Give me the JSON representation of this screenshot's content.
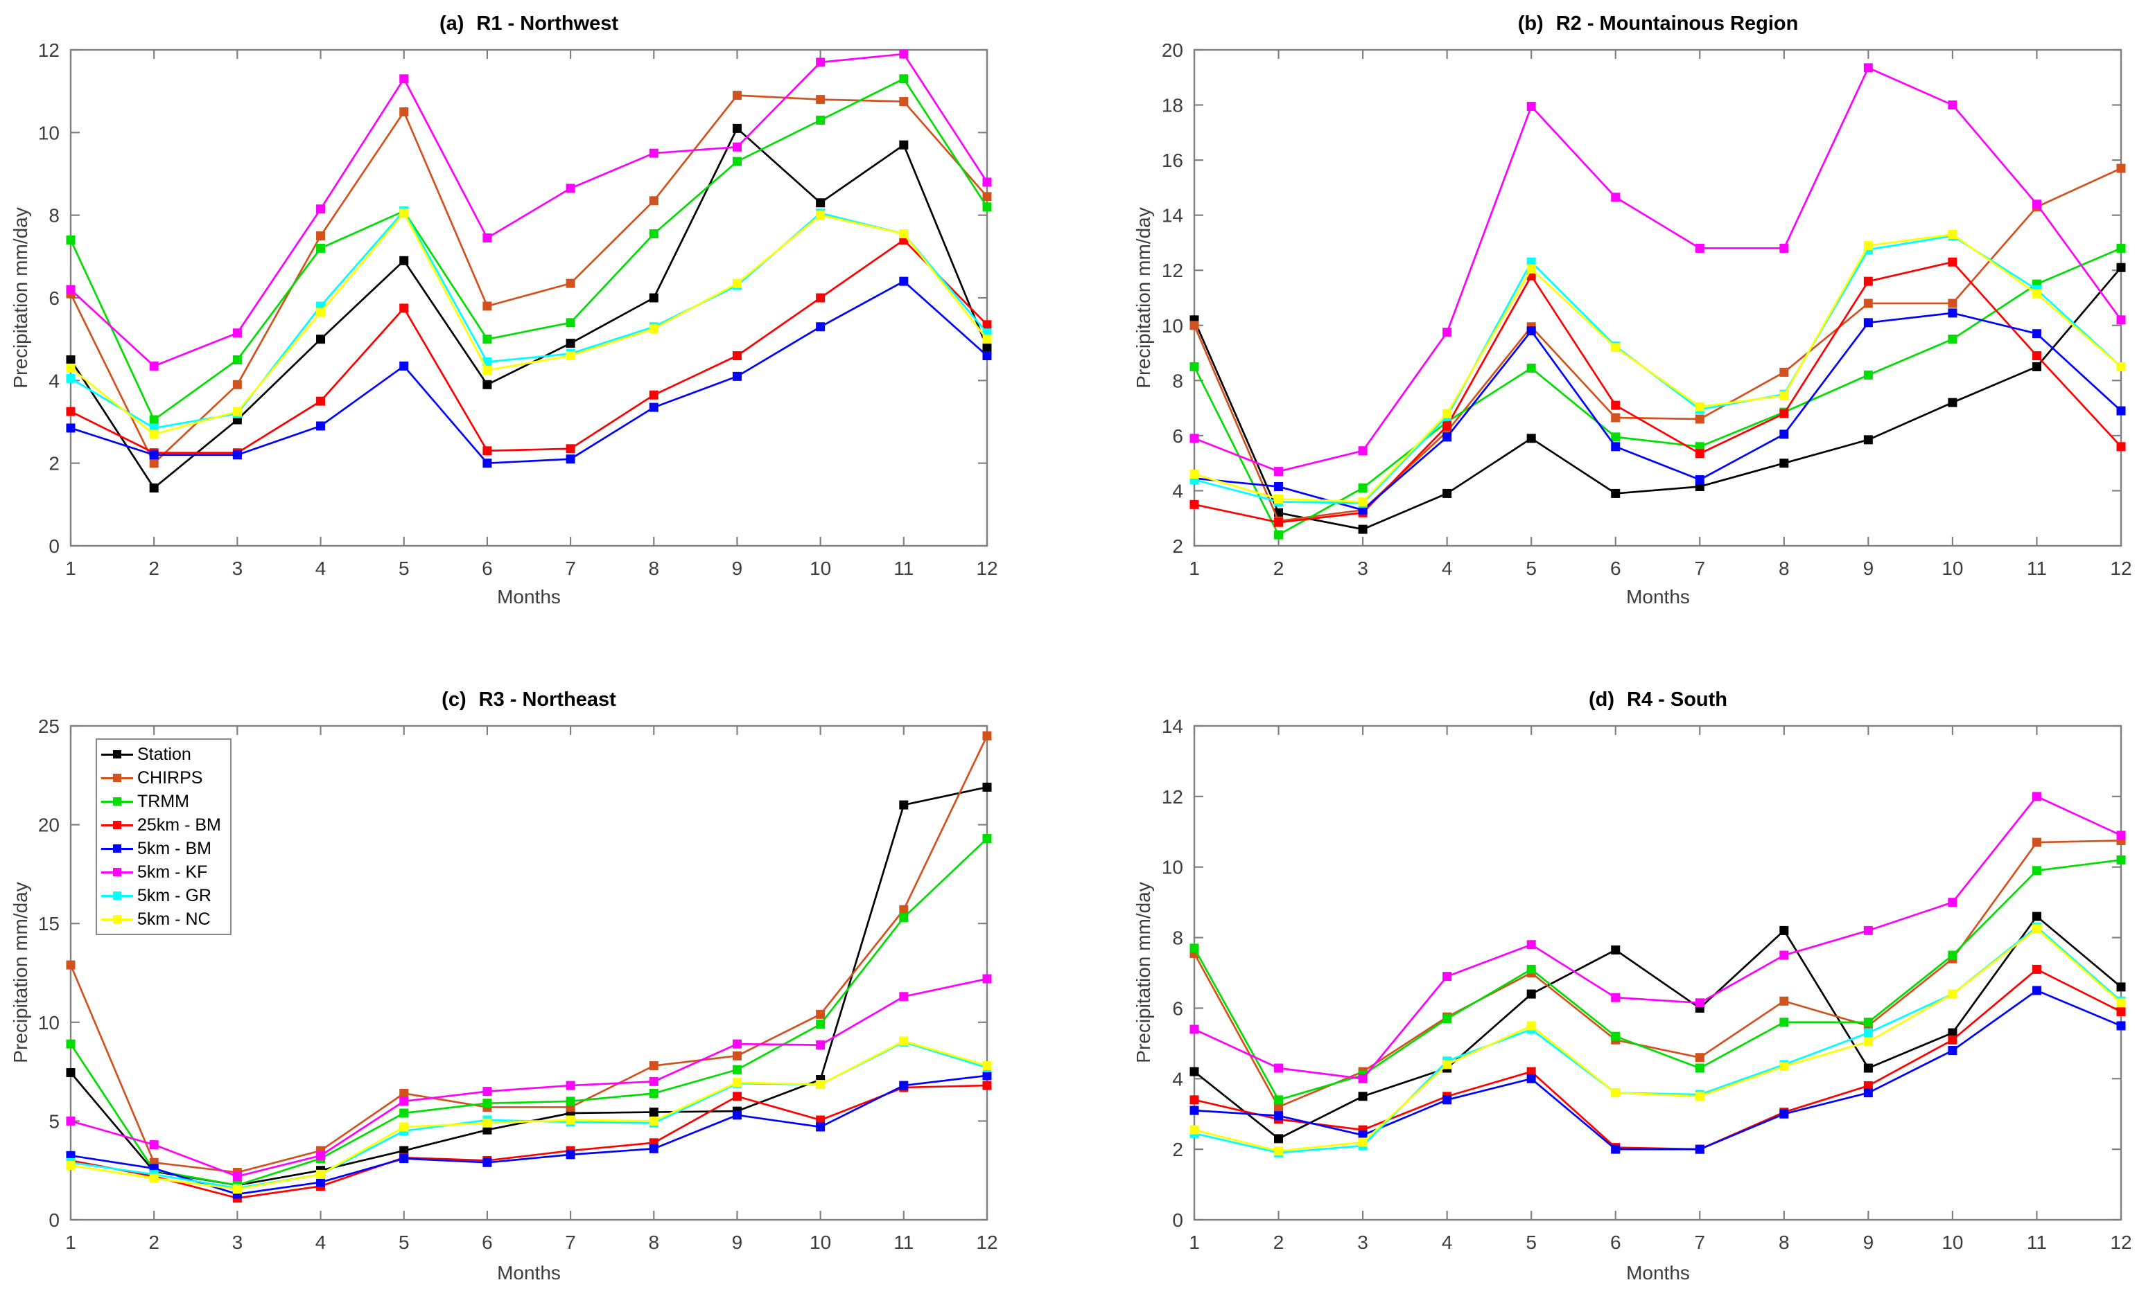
{
  "figure": {
    "background": "#ffffff",
    "axis_color": "#808080",
    "tick_label_color": "#3d3d3d",
    "xlabel": "Months",
    "ylabel": "Precipitation mm/day",
    "x_ticks": [
      1,
      2,
      3,
      4,
      5,
      6,
      7,
      8,
      9,
      10,
      11,
      12
    ],
    "legend": {
      "location": "upper-left of panel (c)",
      "entries": [
        {
          "label": "Station",
          "color": "#000000"
        },
        {
          "label": "CHIRPS",
          "color": "#D2521E"
        },
        {
          "label": "TRMM",
          "color": "#00DD00"
        },
        {
          "label": "25km - BM",
          "color": "#FF0000"
        },
        {
          "label": "5km - BM",
          "color": "#0000FF"
        },
        {
          "label": "5km - KF",
          "color": "#FF00FF"
        },
        {
          "label": "5km - GR",
          "color": "#00FFFF"
        },
        {
          "label": "5km - NC",
          "color": "#FFFF00"
        }
      ]
    }
  },
  "chart_data": [
    {
      "type": "line",
      "title_prefix": "(a)",
      "title": "R1 - Northwest",
      "xlabel": "Months",
      "ylabel": "Precipitation mm/day",
      "x": [
        1,
        2,
        3,
        4,
        5,
        6,
        7,
        8,
        9,
        10,
        11,
        12
      ],
      "ylim": [
        0,
        12
      ],
      "yticks": [
        0,
        2,
        4,
        6,
        8,
        10,
        12
      ],
      "series": [
        {
          "name": "Station",
          "values": [
            4.5,
            1.4,
            3.05,
            5.0,
            6.9,
            3.9,
            4.9,
            6.0,
            10.1,
            8.3,
            9.7,
            4.8
          ]
        },
        {
          "name": "CHIRPS",
          "values": [
            6.1,
            2.0,
            3.9,
            7.5,
            10.5,
            5.8,
            6.35,
            8.35,
            10.9,
            10.8,
            10.75,
            8.45
          ]
        },
        {
          "name": "TRMM",
          "values": [
            7.4,
            3.05,
            4.5,
            7.2,
            8.1,
            5.0,
            5.4,
            7.55,
            9.3,
            10.3,
            11.3,
            8.2
          ]
        },
        {
          "name": "25km - BM",
          "values": [
            3.25,
            2.25,
            2.25,
            3.5,
            5.75,
            2.3,
            2.35,
            3.65,
            4.6,
            6.0,
            7.4,
            5.35
          ]
        },
        {
          "name": "5km - BM",
          "values": [
            2.85,
            2.2,
            2.2,
            2.9,
            4.35,
            2.0,
            2.1,
            3.35,
            4.1,
            5.3,
            6.4,
            4.6
          ]
        },
        {
          "name": "5km - KF",
          "values": [
            6.2,
            4.35,
            5.15,
            8.15,
            11.3,
            7.45,
            8.65,
            9.5,
            9.65,
            11.7,
            11.9,
            8.8
          ]
        },
        {
          "name": "5km - GR",
          "values": [
            4.05,
            2.85,
            3.2,
            5.8,
            8.1,
            4.45,
            4.65,
            5.3,
            6.3,
            8.05,
            7.55,
            5.15
          ]
        },
        {
          "name": "5km - NC",
          "values": [
            4.3,
            2.7,
            3.25,
            5.65,
            8.05,
            4.25,
            4.6,
            5.25,
            6.35,
            8.0,
            7.55,
            5.0
          ]
        }
      ]
    },
    {
      "type": "line",
      "title_prefix": "(b)",
      "title": "R2 - Mountainous Region",
      "xlabel": "Months",
      "ylabel": "Precipitation mm/day",
      "x": [
        1,
        2,
        3,
        4,
        5,
        6,
        7,
        8,
        9,
        10,
        11,
        12
      ],
      "ylim": [
        2,
        20
      ],
      "yticks": [
        2,
        4,
        6,
        8,
        10,
        12,
        14,
        16,
        18,
        20
      ],
      "series": [
        {
          "name": "Station",
          "values": [
            10.2,
            3.2,
            2.6,
            3.9,
            5.9,
            3.9,
            4.15,
            5.0,
            5.85,
            7.2,
            8.5,
            12.1
          ]
        },
        {
          "name": "CHIRPS",
          "values": [
            10.0,
            2.9,
            3.3,
            6.15,
            9.95,
            6.65,
            6.6,
            8.3,
            10.8,
            10.8,
            14.3,
            15.7
          ]
        },
        {
          "name": "TRMM",
          "values": [
            8.5,
            2.4,
            4.1,
            6.5,
            8.45,
            5.95,
            5.6,
            6.85,
            8.2,
            9.5,
            11.5,
            12.8
          ]
        },
        {
          "name": "25km - BM",
          "values": [
            3.5,
            2.85,
            3.2,
            6.35,
            11.8,
            7.1,
            5.35,
            6.8,
            11.6,
            12.3,
            8.9,
            5.6
          ]
        },
        {
          "name": "5km - BM",
          "values": [
            4.45,
            4.15,
            3.3,
            5.95,
            9.8,
            5.6,
            4.4,
            6.05,
            10.1,
            10.45,
            9.7,
            6.9
          ]
        },
        {
          "name": "5km - KF",
          "values": [
            5.9,
            4.7,
            5.45,
            9.75,
            17.95,
            14.65,
            12.8,
            12.8,
            19.35,
            18.0,
            14.4,
            10.2
          ]
        },
        {
          "name": "5km - GR",
          "values": [
            4.4,
            3.6,
            3.55,
            6.7,
            12.3,
            9.25,
            6.95,
            7.5,
            12.75,
            13.25,
            11.3,
            8.5
          ]
        },
        {
          "name": "5km - NC",
          "values": [
            4.6,
            3.7,
            3.6,
            6.8,
            12.05,
            9.2,
            7.05,
            7.45,
            12.9,
            13.3,
            11.15,
            8.5
          ]
        }
      ]
    },
    {
      "type": "line",
      "title_prefix": "(c)",
      "title": "R3 - Northeast",
      "xlabel": "Months",
      "ylabel": "Precipitation mm/day",
      "x": [
        1,
        2,
        3,
        4,
        5,
        6,
        7,
        8,
        9,
        10,
        11,
        12
      ],
      "ylim": [
        0,
        25
      ],
      "yticks": [
        0,
        5,
        10,
        15,
        20,
        25
      ],
      "series": [
        {
          "name": "Station",
          "values": [
            7.45,
            2.45,
            1.75,
            2.5,
            3.5,
            4.55,
            5.4,
            5.45,
            5.5,
            7.1,
            21.0,
            21.9
          ]
        },
        {
          "name": "CHIRPS",
          "values": [
            12.9,
            2.9,
            2.4,
            3.5,
            6.4,
            5.7,
            5.7,
            7.8,
            8.3,
            10.4,
            15.7,
            24.5
          ]
        },
        {
          "name": "TRMM",
          "values": [
            8.9,
            2.5,
            1.75,
            3.1,
            5.4,
            5.9,
            6.0,
            6.4,
            7.6,
            9.9,
            15.3,
            19.3
          ]
        },
        {
          "name": "25km - BM",
          "values": [
            3.0,
            2.2,
            1.1,
            1.7,
            3.15,
            3.0,
            3.5,
            3.9,
            6.25,
            5.05,
            6.7,
            6.8
          ]
        },
        {
          "name": "5km - BM",
          "values": [
            3.25,
            2.6,
            1.3,
            1.9,
            3.1,
            2.9,
            3.3,
            3.6,
            5.3,
            4.7,
            6.8,
            7.3
          ]
        },
        {
          "name": "5km - KF",
          "values": [
            5.0,
            3.8,
            2.2,
            3.25,
            6.0,
            6.5,
            6.8,
            7.0,
            8.9,
            8.85,
            11.3,
            12.2
          ]
        },
        {
          "name": "5km - GR",
          "values": [
            2.9,
            2.3,
            1.6,
            2.3,
            4.5,
            5.05,
            4.95,
            4.9,
            6.9,
            6.85,
            9.0,
            7.7
          ]
        },
        {
          "name": "5km - NC",
          "values": [
            2.75,
            2.1,
            1.55,
            2.3,
            4.7,
            4.9,
            5.05,
            5.0,
            6.95,
            6.85,
            9.05,
            7.8
          ]
        }
      ]
    },
    {
      "type": "line",
      "title_prefix": "(d)",
      "title": "R4 - South",
      "xlabel": "Months",
      "ylabel": "Precipitation mm/day",
      "x": [
        1,
        2,
        3,
        4,
        5,
        6,
        7,
        8,
        9,
        10,
        11,
        12
      ],
      "ylim": [
        0,
        14
      ],
      "yticks": [
        0,
        2,
        4,
        6,
        8,
        10,
        12,
        14
      ],
      "series": [
        {
          "name": "Station",
          "values": [
            4.2,
            2.3,
            3.5,
            4.3,
            6.4,
            7.65,
            6.0,
            8.2,
            4.3,
            5.3,
            8.6,
            6.6
          ]
        },
        {
          "name": "CHIRPS",
          "values": [
            7.55,
            3.2,
            4.2,
            5.75,
            7.0,
            5.1,
            4.6,
            6.2,
            5.5,
            7.4,
            10.7,
            10.75
          ]
        },
        {
          "name": "TRMM",
          "values": [
            7.7,
            3.4,
            4.1,
            5.7,
            7.1,
            5.2,
            4.3,
            5.6,
            5.6,
            7.5,
            9.9,
            10.2
          ]
        },
        {
          "name": "25km - BM",
          "values": [
            3.4,
            2.85,
            2.55,
            3.5,
            4.2,
            2.05,
            2.0,
            3.05,
            3.8,
            5.1,
            7.1,
            5.9
          ]
        },
        {
          "name": "5km - BM",
          "values": [
            3.1,
            2.95,
            2.4,
            3.4,
            4.0,
            2.0,
            2.0,
            3.0,
            3.6,
            4.8,
            6.5,
            5.5
          ]
        },
        {
          "name": "5km - KF",
          "values": [
            5.4,
            4.3,
            4.0,
            6.9,
            7.8,
            6.3,
            6.15,
            7.5,
            8.2,
            9.0,
            12.0,
            10.9
          ]
        },
        {
          "name": "5km - GR",
          "values": [
            2.45,
            1.9,
            2.1,
            4.5,
            5.4,
            3.6,
            3.55,
            4.4,
            5.3,
            6.4,
            8.3,
            6.2
          ]
        },
        {
          "name": "5km - NC",
          "values": [
            2.55,
            1.95,
            2.2,
            4.4,
            5.5,
            3.6,
            3.5,
            4.35,
            5.05,
            6.4,
            8.25,
            6.15
          ]
        }
      ]
    }
  ]
}
